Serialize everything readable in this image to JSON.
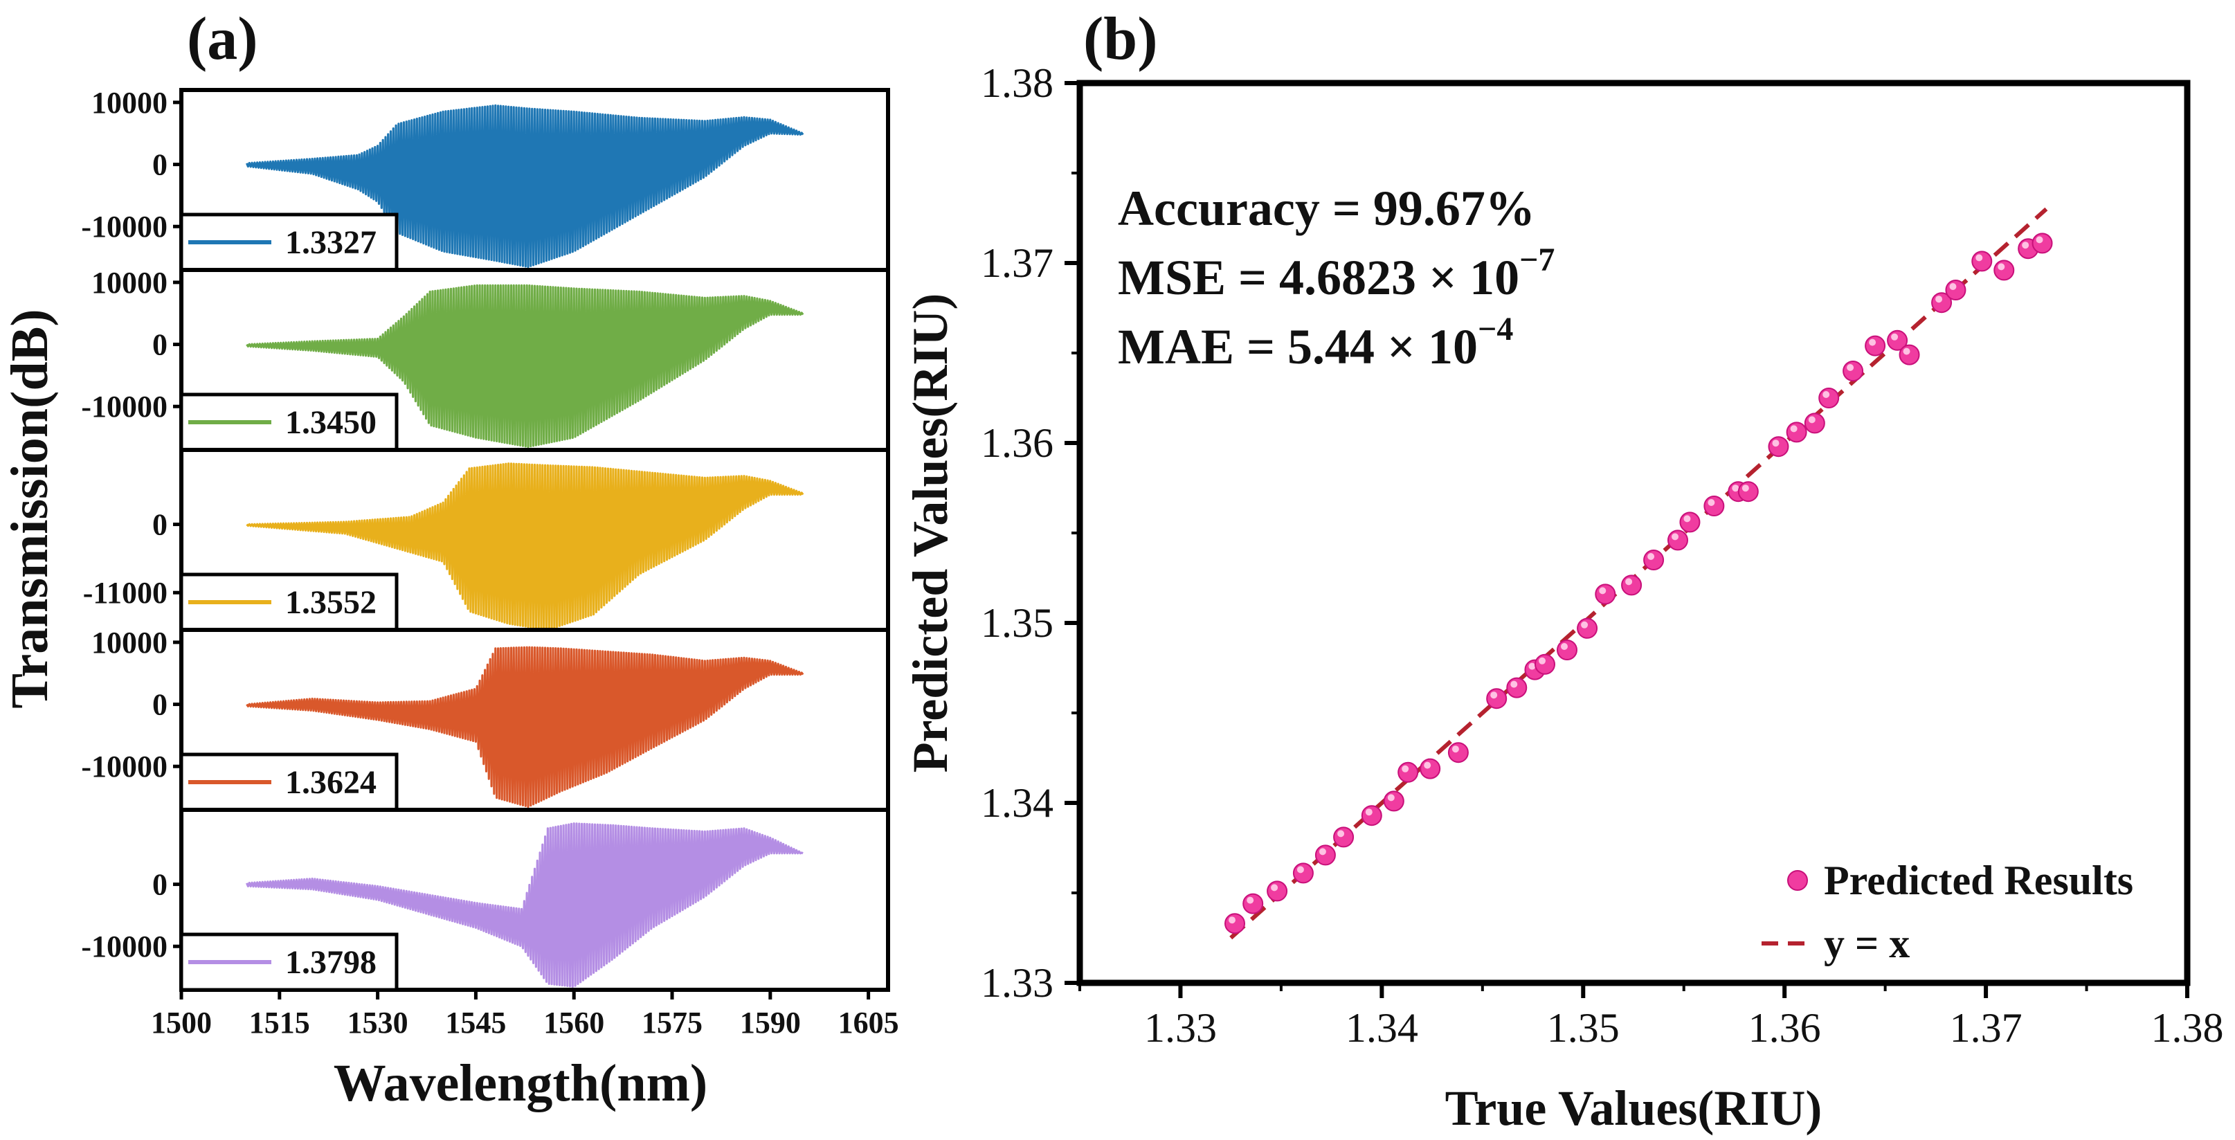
{
  "panel_a_label": "(a)",
  "panel_b_label": "(b)",
  "chart_data": [
    {
      "type": "line",
      "title": "(a)",
      "xlabel": "Wavelength(nm)",
      "ylabel": "Transmission(dB)",
      "xlim": [
        1500,
        1608
      ],
      "x_ticks": [
        1500,
        1515,
        1530,
        1545,
        1560,
        1575,
        1590,
        1605
      ],
      "x_tick_labels": [
        "1500",
        "1515",
        "1530",
        "1545",
        "1560",
        "1575",
        "1590",
        "1605"
      ],
      "series": [
        {
          "name": "1.3327",
          "color": "#1f77b4",
          "ylim": [
            -17000,
            12000
          ],
          "y_ticks": [
            10000,
            0,
            -10000
          ],
          "y_tick_labels": [
            "10000",
            "0",
            "-10000"
          ],
          "envelope_x": [
            1510,
            1520,
            1527,
            1530,
            1533,
            1540,
            1548,
            1553,
            1560,
            1570,
            1580,
            1586,
            1590,
            1595
          ],
          "upper": [
            200,
            900,
            1500,
            3000,
            6500,
            8500,
            9500,
            9000,
            8500,
            7500,
            7000,
            7600,
            7200,
            5000
          ],
          "lower": [
            -300,
            -1500,
            -4000,
            -6000,
            -11000,
            -14000,
            -15500,
            -16500,
            -14000,
            -8000,
            -2000,
            3000,
            5000,
            4800
          ]
        },
        {
          "name": "1.3450",
          "color": "#70ad47",
          "ylim": [
            -17000,
            12000
          ],
          "y_ticks": [
            10000,
            0,
            -10000
          ],
          "y_tick_labels": [
            "10000",
            "0",
            "-10000"
          ],
          "envelope_x": [
            1510,
            1520,
            1530,
            1534,
            1538,
            1545,
            1553,
            1560,
            1570,
            1580,
            1586,
            1590,
            1595
          ],
          "upper": [
            0,
            500,
            900,
            4500,
            8500,
            9500,
            9500,
            9000,
            8500,
            7500,
            7800,
            7000,
            5000
          ],
          "lower": [
            -300,
            -1000,
            -2000,
            -6000,
            -13000,
            -15000,
            -16500,
            -15000,
            -9000,
            -2500,
            2500,
            4800,
            4800
          ]
        },
        {
          "name": "1.3552",
          "color": "#e8b01c",
          "ylim": [
            -17000,
            12000
          ],
          "y_ticks": [
            0,
            -11000
          ],
          "y_tick_labels": [
            "0",
            "-11000"
          ],
          "envelope_x": [
            1510,
            1525,
            1535,
            1540,
            1544,
            1550,
            1556,
            1563,
            1570,
            1580,
            1586,
            1590,
            1595
          ],
          "upper": [
            0,
            400,
            1200,
            3500,
            9000,
            9800,
            9500,
            9200,
            8500,
            7500,
            7800,
            7000,
            5000
          ],
          "lower": [
            -200,
            -1500,
            -4500,
            -6000,
            -14000,
            -16000,
            -17000,
            -14500,
            -8000,
            -2500,
            2500,
            4800,
            4800
          ]
        },
        {
          "name": "1.3624",
          "color": "#d9582b",
          "ylim": [
            -17000,
            12000
          ],
          "y_ticks": [
            10000,
            0,
            -10000
          ],
          "y_tick_labels": [
            "10000",
            "0",
            "-10000"
          ],
          "envelope_x": [
            1510,
            1520,
            1530,
            1538,
            1545,
            1548,
            1553,
            1558,
            1565,
            1572,
            1580,
            1586,
            1590,
            1595
          ],
          "upper": [
            0,
            900,
            300,
            500,
            2500,
            9000,
            9200,
            9000,
            8500,
            8000,
            7000,
            7500,
            7000,
            5000
          ],
          "lower": [
            -300,
            -1000,
            -2500,
            -4000,
            -6000,
            -15000,
            -16500,
            -14000,
            -11000,
            -7000,
            -2500,
            2500,
            4800,
            4800
          ]
        },
        {
          "name": "1.3798",
          "color": "#b48ee4",
          "ylim": [
            -17000,
            12000
          ],
          "y_ticks": [
            0,
            -10000
          ],
          "y_tick_labels": [
            "0",
            "-10000"
          ],
          "envelope_x": [
            1510,
            1520,
            1530,
            1545,
            1552,
            1556,
            1560,
            1566,
            1572,
            1580,
            1586,
            1590,
            1595
          ],
          "upper": [
            200,
            900,
            -300,
            -3000,
            -4000,
            9000,
            9800,
            9500,
            9000,
            8500,
            9000,
            7500,
            5000
          ],
          "lower": [
            -300,
            -800,
            -2500,
            -7000,
            -10000,
            -16000,
            -16500,
            -12000,
            -7000,
            -2000,
            3000,
            5000,
            5000
          ]
        }
      ]
    },
    {
      "type": "scatter",
      "title": "(b)",
      "xlabel": "True Values(RIU)",
      "ylabel": "Predicted Values(RIU)",
      "xlim": [
        1.325,
        1.38
      ],
      "ylim": [
        1.33,
        1.38
      ],
      "x_ticks": [
        1.33,
        1.34,
        1.35,
        1.36,
        1.37,
        1.38
      ],
      "x_tick_labels": [
        "1.33",
        "1.34",
        "1.35",
        "1.36",
        "1.37",
        "1.38"
      ],
      "y_ticks": [
        1.33,
        1.34,
        1.35,
        1.36,
        1.37,
        1.38
      ],
      "y_tick_labels": [
        "1.33",
        "1.34",
        "1.35",
        "1.36",
        "1.37",
        "1.38"
      ],
      "annotations": [
        "Accuracy = 99.67%",
        "MSE = 4.6823 × 10",
        "−7",
        "MAE = 5.44 × 10",
        "−4"
      ],
      "series": [
        {
          "name": "Predicted Results",
          "color": "#f03ca0",
          "x": [
            1.3327,
            1.3336,
            1.3348,
            1.3361,
            1.3372,
            1.3381,
            1.3395,
            1.3406,
            1.3413,
            1.3424,
            1.3438,
            1.3457,
            1.3467,
            1.3476,
            1.3481,
            1.3492,
            1.3502,
            1.3511,
            1.3524,
            1.3535,
            1.3547,
            1.3553,
            1.3565,
            1.3577,
            1.3582,
            1.3597,
            1.3606,
            1.3615,
            1.3622,
            1.3634,
            1.3645,
            1.3656,
            1.3662,
            1.3678,
            1.3685,
            1.3698,
            1.3709,
            1.3721,
            1.3728
          ],
          "y": [
            1.3333,
            1.3344,
            1.3351,
            1.3361,
            1.3371,
            1.3381,
            1.3393,
            1.3401,
            1.3417,
            1.3419,
            1.3428,
            1.3458,
            1.3464,
            1.3474,
            1.3477,
            1.3485,
            1.3497,
            1.3516,
            1.3521,
            1.3535,
            1.3546,
            1.3556,
            1.3565,
            1.3573,
            1.3573,
            1.3598,
            1.3606,
            1.3611,
            1.3625,
            1.364,
            1.3654,
            1.3657,
            1.3649,
            1.3678,
            1.3685,
            1.3701,
            1.3696,
            1.3708,
            1.3711
          ]
        },
        {
          "name": "y = x",
          "color": "#b5222f",
          "style": "dashed",
          "x": [
            1.3325,
            1.373
          ],
          "y": [
            1.3325,
            1.373
          ]
        }
      ]
    }
  ]
}
